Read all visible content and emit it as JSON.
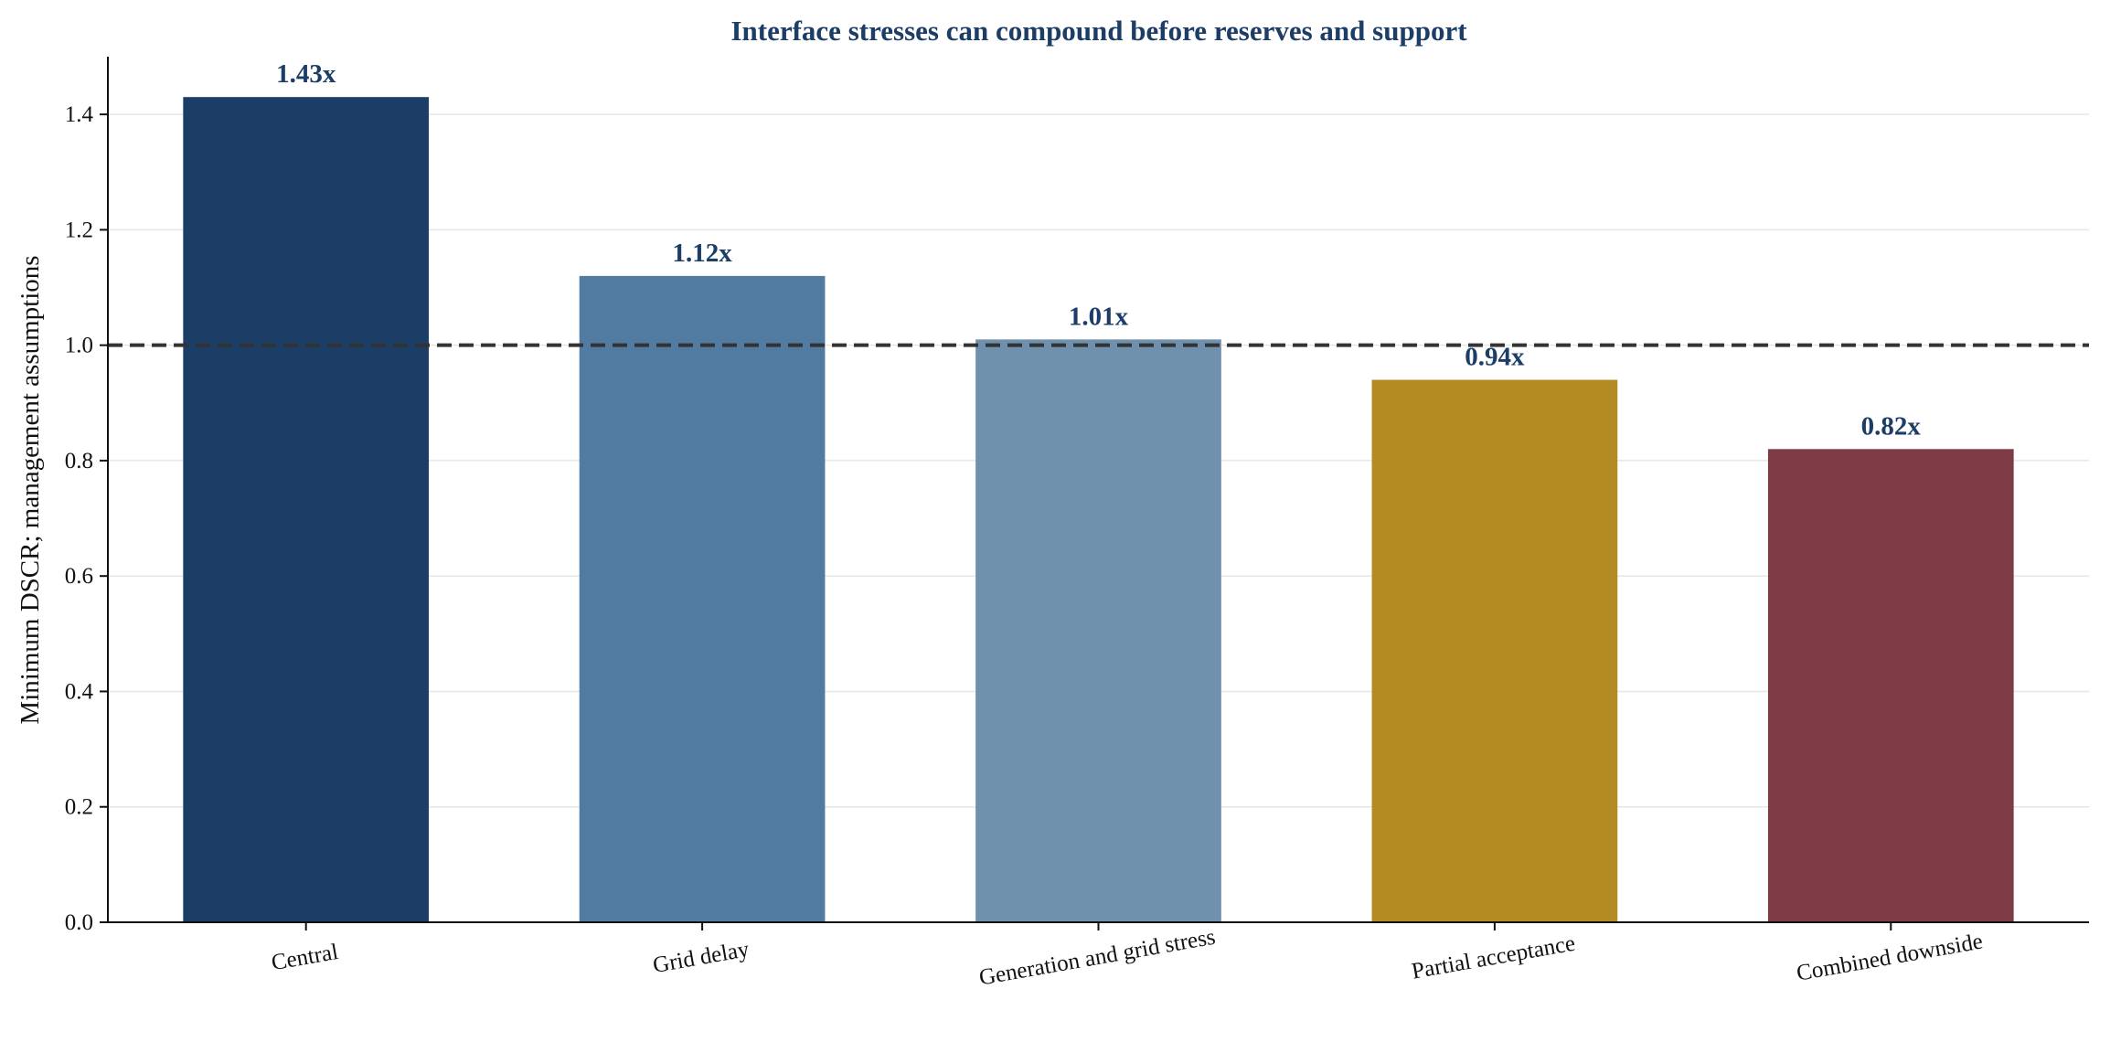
{
  "chart_data": {
    "type": "bar",
    "title": "Interface stresses can compound before reserves and support",
    "xlabel": "",
    "ylabel": "Minimum DSCR; management assumptions",
    "categories": [
      "Central",
      "Grid delay",
      "Generation and grid stress",
      "Partial acceptance",
      "Combined downside"
    ],
    "values": [
      1.43,
      1.12,
      1.01,
      0.94,
      0.82
    ],
    "value_labels": [
      "1.43x",
      "1.12x",
      "1.01x",
      "0.94x",
      "0.82x"
    ],
    "bar_colors": [
      "#1b3d66",
      "#527ba2",
      "#6f91ad",
      "#b38b22",
      "#7d3c45"
    ],
    "ylim": [
      0,
      1.5
    ],
    "yticks": [
      0.0,
      0.2,
      0.4,
      0.6,
      0.8,
      1.0,
      1.2,
      1.4
    ],
    "ytick_labels": [
      "0.0",
      "0.2",
      "0.4",
      "0.6",
      "0.8",
      "1.0",
      "1.2",
      "1.4"
    ],
    "reference_line": {
      "value": 1.0,
      "style": "dashed",
      "color": "#333333"
    },
    "grid": {
      "y": true,
      "x": false
    },
    "legend": "none",
    "title_color": "#1b3d66",
    "value_label_color": "#1b3d66"
  }
}
